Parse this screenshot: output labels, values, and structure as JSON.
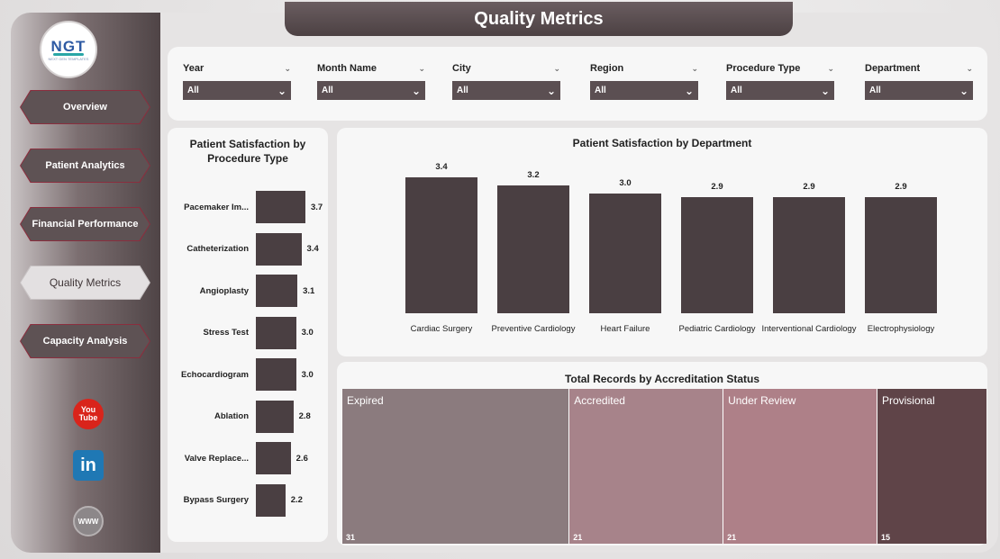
{
  "header": {
    "title": "Quality Metrics"
  },
  "logo": {
    "text": "NGT",
    "subtext": "NEXT GEN TEMPLATES"
  },
  "sidebar": {
    "items": [
      {
        "label": "Overview",
        "active": false
      },
      {
        "label": "Patient Analytics",
        "active": false
      },
      {
        "label": "Financial Performance",
        "active": false
      },
      {
        "label": "Quality Metrics",
        "active": true
      },
      {
        "label": "Capacity Analysis",
        "active": false
      }
    ],
    "social": [
      {
        "name": "youtube-icon",
        "line1": "You",
        "line2": "Tube"
      },
      {
        "name": "linkedin-icon",
        "text": "in"
      },
      {
        "name": "website-icon",
        "text": "WWW"
      }
    ]
  },
  "filters": [
    {
      "label": "Year",
      "value": "All"
    },
    {
      "label": "Month Name",
      "value": "All"
    },
    {
      "label": "City",
      "value": "All"
    },
    {
      "label": "Region",
      "value": "All"
    },
    {
      "label": "Procedure Type",
      "value": "All"
    },
    {
      "label": "Department",
      "value": "All"
    }
  ],
  "chart_data": [
    {
      "type": "bar",
      "orientation": "horizontal",
      "title": "Patient Satisfaction by Procedure Type",
      "categories": [
        "Pacemaker Im...",
        "Catheterization",
        "Angioplasty",
        "Stress Test",
        "Echocardiogram",
        "Ablation",
        "Valve Replace...",
        "Bypass Surgery"
      ],
      "values": [
        3.7,
        3.4,
        3.1,
        3.0,
        3.0,
        2.8,
        2.6,
        2.2
      ],
      "bar_color": "#4a3f42"
    },
    {
      "type": "bar",
      "orientation": "vertical",
      "title": "Patient Satisfaction by Department",
      "categories": [
        "Cardiac Surgery",
        "Preventive Cardiology",
        "Heart Failure",
        "Pediatric Cardiology",
        "Interventional Cardiology",
        "Electrophysiology"
      ],
      "values": [
        3.4,
        3.2,
        3.0,
        2.9,
        2.9,
        2.9
      ],
      "bar_color": "#4a3f42"
    },
    {
      "type": "treemap",
      "title": "Total Records by Accreditation Status",
      "categories": [
        "Expired",
        "Accredited",
        "Under Review",
        "Provisional"
      ],
      "values": [
        31,
        21,
        21,
        15
      ],
      "colors": [
        "#8b7b7e",
        "#a7838a",
        "#ae8088",
        "#5f4448"
      ]
    }
  ]
}
